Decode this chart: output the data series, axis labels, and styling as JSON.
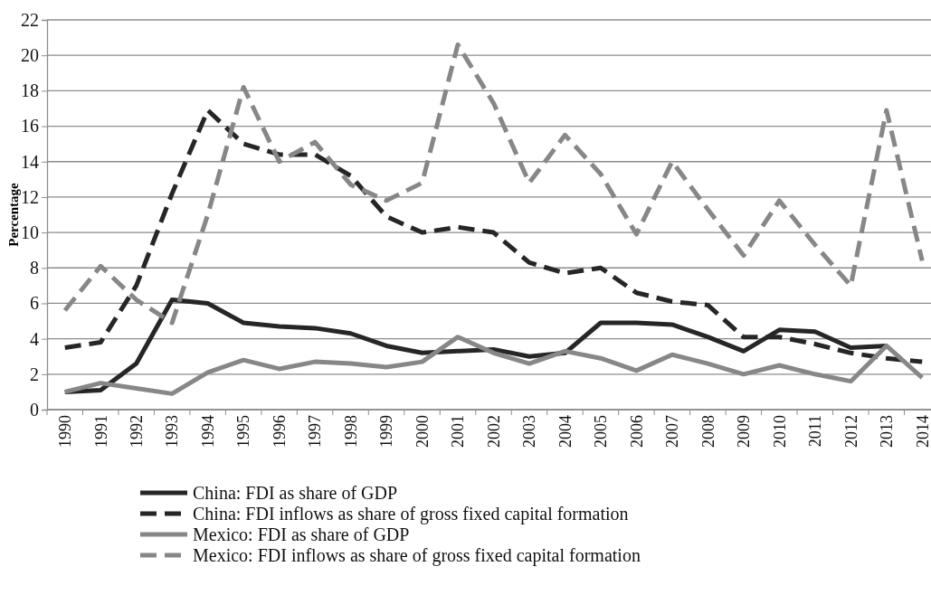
{
  "chart_data": {
    "type": "line",
    "categories": [
      "1990",
      "1991",
      "1992",
      "1993",
      "1994",
      "1995",
      "1996",
      "1997",
      "1998",
      "1999",
      "2000",
      "2001",
      "2002",
      "2003",
      "2004",
      "2005",
      "2006",
      "2007",
      "2008",
      "2009",
      "2010",
      "2011",
      "2012",
      "2013",
      "2014"
    ],
    "ylabel": "Percentage",
    "ylim": [
      0,
      22
    ],
    "yticks": [
      0,
      2,
      4,
      6,
      8,
      10,
      12,
      14,
      16,
      18,
      20,
      22
    ],
    "grid": "y",
    "legend": "bottom",
    "series": [
      {
        "name": "China: FDI as share of GDP",
        "color": "#262626",
        "line_style": "solid",
        "values": [
          1.0,
          1.1,
          2.6,
          6.2,
          6.0,
          4.9,
          4.7,
          4.6,
          4.3,
          3.6,
          3.2,
          3.3,
          3.4,
          3.0,
          3.2,
          4.9,
          4.9,
          4.8,
          4.1,
          3.3,
          4.5,
          4.4,
          3.5,
          3.6,
          null
        ]
      },
      {
        "name": "China: FDI inflows as share of gross fixed capital formation",
        "color": "#262626",
        "line_style": "dashed",
        "values": [
          3.5,
          3.8,
          7.0,
          12.2,
          16.9,
          15.0,
          14.4,
          14.4,
          13.2,
          10.9,
          10.0,
          10.3,
          10.0,
          8.3,
          7.7,
          8.0,
          6.6,
          6.1,
          5.9,
          4.1,
          4.1,
          3.7,
          3.2,
          2.9,
          2.7
        ]
      },
      {
        "name": "Mexico: FDI as share of GDP",
        "color": "#878787",
        "line_style": "solid",
        "values": [
          1.0,
          1.5,
          1.2,
          0.9,
          2.1,
          2.8,
          2.3,
          2.7,
          2.6,
          2.4,
          2.7,
          4.1,
          3.2,
          2.6,
          3.3,
          2.9,
          2.2,
          3.1,
          2.6,
          2.0,
          2.5,
          2.0,
          1.6,
          3.6,
          1.8
        ]
      },
      {
        "name": "Mexico: FDI inflows as share of gross fixed capital formation",
        "color": "#878787",
        "line_style": "dashed",
        "values": [
          5.6,
          8.1,
          6.2,
          4.9,
          11.0,
          18.2,
          14.0,
          15.1,
          12.7,
          11.8,
          12.8,
          20.6,
          17.3,
          12.8,
          15.5,
          13.3,
          9.9,
          14.0,
          11.3,
          8.7,
          11.8,
          9.3,
          7.0,
          16.9,
          8.4
        ]
      }
    ]
  }
}
